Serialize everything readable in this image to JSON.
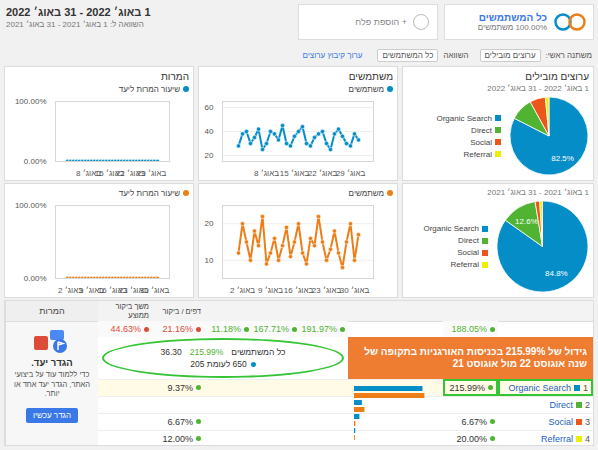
{
  "header": {
    "date_range": "1 באוג׳ 2022 - 31 באוג׳ 2022",
    "compare": "השוואה ל: 1 באוג׳ 2021 - 31 באוג׳ 2021",
    "add_segment": "+ הוספת פלח",
    "segment": "כל המשתמשים",
    "segment_share": "100.00% משתמשים"
  },
  "controls": {
    "dimension_label": "משתנה ראשי:",
    "dimension": "ערוצים מובילים",
    "compare_label": "השוואה",
    "compare": "כל המשתמשים",
    "edit": "ערוך קיבוץ ערוצים"
  },
  "chart_data": [
    {
      "type": "pie",
      "title": "ערוצים מובילים",
      "subtitle": "1 באוג׳ 2022 - 31 באוג׳ 2022",
      "categories": [
        "Organic Search",
        "Direct",
        "Social",
        "Referral"
      ],
      "values": [
        82.5,
        9.5,
        6.5,
        1.5
      ],
      "colors": [
        "#058dc7",
        "#50b432",
        "#ed561b",
        "#edef00"
      ],
      "data_labels": true,
      "value_labels": [
        "82.5%",
        null,
        null,
        null
      ],
      "legend": "left"
    },
    {
      "type": "line",
      "title": "משתמשים",
      "categories": [
        null,
        null,
        null,
        null,
        null,
        null,
        null,
        "8 באוג׳",
        null,
        null,
        null,
        null,
        null,
        null,
        "15 באוג׳",
        null,
        null,
        null,
        null,
        null,
        null,
        "22 באוג׳",
        null,
        null,
        null,
        null,
        null,
        null,
        "29 באוג׳",
        null,
        null
      ],
      "series": [
        {
          "name": "משתמשים",
          "color": "#058dc7",
          "marker": "circle",
          "values": [
            28,
            38,
            40,
            30,
            35,
            42,
            25,
            30,
            40,
            38,
            33,
            45,
            30,
            28,
            36,
            40,
            44,
            30,
            28,
            35,
            38,
            40,
            30,
            25,
            38,
            42,
            36,
            30,
            28,
            38,
            33
          ]
        }
      ],
      "ylim": [
        15,
        65
      ],
      "yticks": [
        20,
        40,
        60
      ],
      "grid": true,
      "legend": "top"
    },
    {
      "type": "line",
      "title": "המרות",
      "categories": [
        null,
        null,
        null,
        null,
        null,
        null,
        null,
        "8 באוג׳",
        null,
        null,
        null,
        null,
        null,
        null,
        "15 באוג׳",
        null,
        null,
        null,
        null,
        null,
        null,
        "22 באוג׳",
        null,
        null,
        null,
        null,
        null,
        null,
        "29 באוג׳",
        null,
        null
      ],
      "series": [
        {
          "name": "שיעור המרות ליעד",
          "color": "#058dc7",
          "marker": "circle",
          "values": [
            0,
            0,
            0,
            0,
            0,
            0,
            0,
            0,
            0,
            0,
            0,
            0,
            0,
            0,
            0,
            0,
            0,
            0,
            0,
            0,
            0,
            0,
            0,
            0,
            0,
            0,
            0,
            0,
            0,
            0,
            0
          ]
        }
      ],
      "ylim": [
        0,
        100
      ],
      "yticks": [
        {
          "value": 0,
          "label": "0.00%"
        },
        {
          "value": 100,
          "label": "100.00%"
        }
      ],
      "grid": true,
      "legend": "top"
    },
    {
      "type": "pie",
      "subtitle": "1 באוג׳ 2021 - 31 באוג׳ 2021",
      "categories": [
        "Organic Search",
        "Direct",
        "Social",
        "Referral"
      ],
      "values": [
        84.8,
        12.6,
        1.6,
        1.0
      ],
      "colors": [
        "#058dc7",
        "#50b432",
        "#ed561b",
        "#edef00"
      ],
      "data_labels": true,
      "value_labels": [
        "84.8%",
        "12.6%",
        null,
        null
      ],
      "legend": "left"
    },
    {
      "type": "line",
      "categories": [
        null,
        "2 באוג׳",
        null,
        null,
        null,
        null,
        null,
        null,
        "9 באוג׳",
        null,
        null,
        null,
        null,
        null,
        null,
        "16 באוג׳",
        null,
        null,
        null,
        null,
        null,
        null,
        "23 באוג׳",
        null,
        null,
        null,
        null,
        null,
        null,
        "30 באוג׳",
        null
      ],
      "series": [
        {
          "name": "משתמשים",
          "color": "#ed7e17",
          "marker": "circle",
          "values": [
            12,
            20,
            15,
            10,
            18,
            14,
            22,
            9,
            12,
            16,
            10,
            14,
            19,
            11,
            15,
            20,
            12,
            9,
            16,
            14,
            22,
            15,
            10,
            13,
            18,
            12,
            8,
            15,
            20,
            10,
            17
          ]
        }
      ],
      "ylim": [
        5,
        25
      ],
      "yticks": [
        10,
        20
      ],
      "grid": true,
      "legend": "top"
    },
    {
      "type": "line",
      "categories": [
        null,
        "2 באוג׳",
        null,
        null,
        null,
        null,
        null,
        null,
        "9 באוג׳",
        null,
        null,
        null,
        null,
        null,
        null,
        "16 באוג׳",
        null,
        null,
        null,
        null,
        null,
        null,
        "23 באוג׳",
        null,
        null,
        null,
        null,
        null,
        null,
        "30 באוג׳",
        null
      ],
      "series": [
        {
          "name": "שיעור המרות ליעד",
          "color": "#ed7e17",
          "marker": "circle",
          "values": [
            0,
            0,
            0,
            0,
            0,
            0,
            0,
            0,
            0,
            0,
            0,
            0,
            0,
            0,
            0,
            0,
            0,
            0,
            0,
            0,
            0,
            0,
            0,
            0,
            0,
            0,
            0,
            0,
            0,
            0,
            0
          ]
        }
      ],
      "ylim": [
        0,
        100
      ],
      "yticks": [
        {
          "value": 0,
          "label": "0.00%"
        },
        {
          "value": 100,
          "label": "100.00%"
        }
      ],
      "grid": true,
      "legend": "top"
    }
  ],
  "table": {
    "title": "המרות",
    "columns": [
      null,
      null,
      null,
      null,
      null,
      null,
      "דפים / ביקור",
      "משך ביקור ממוצע"
    ],
    "totals": [
      null,
      {
        "text": "188.05%",
        "color": "#50b432"
      },
      null,
      {
        "text": "191.97%",
        "color": "#50b432"
      },
      {
        "text": "167.71%",
        "color": "#50b432"
      },
      {
        "text": "11.18%",
        "color": "#50b432"
      },
      {
        "text": "21.16%",
        "color": "#dd4b39"
      },
      {
        "text": "44.63%",
        "color": "#dd4b39"
      }
    ],
    "rows": [
      {
        "rank": "1",
        "channel": "Organic Search",
        "cells": [
          "215.99%",
          null,
          null,
          null,
          null,
          "9.37%",
          null
        ]
      },
      {
        "rank": "2",
        "channel": "Direct",
        "cells": [
          null,
          null,
          null,
          null,
          null,
          null,
          null
        ]
      },
      {
        "rank": "3",
        "channel": "Social",
        "cells": [
          "6.67%",
          null,
          null,
          null,
          null,
          "6.67%",
          null
        ]
      },
      {
        "rank": "4",
        "channel": "Referral",
        "cells": [
          "20.00%",
          null,
          null,
          null,
          null,
          "12.00%",
          null
        ]
      }
    ],
    "bars": {
      "type": "bar",
      "orientation": "horizontal",
      "xlim": [
        0,
        100
      ],
      "tick_labels": false,
      "series": [
        {
          "color": "#058dc7",
          "values": [
            82.5,
            9.5,
            6.5,
            1.5
          ]
        },
        {
          "color": "#ed7e17",
          "values": [
            84.8,
            12.6,
            1.6,
            1.0
          ]
        }
      ]
    }
  },
  "tooltip": {
    "title": "כל המשתמשים",
    "change": "215.99%",
    "value": "36.30",
    "comparison": "650 לעומת 205"
  },
  "callout": "גידול של 215.99% בכניסות האורגניות בתקופה של שנה אוגוסט 22 מול אוגוסט 21",
  "goal": {
    "title": "הגדר יעד.",
    "text": "כדי ללמוד עוד על ביצועי האתר, הגדר יעד אחד או יותר.",
    "button": "הגדר עכשיו"
  }
}
